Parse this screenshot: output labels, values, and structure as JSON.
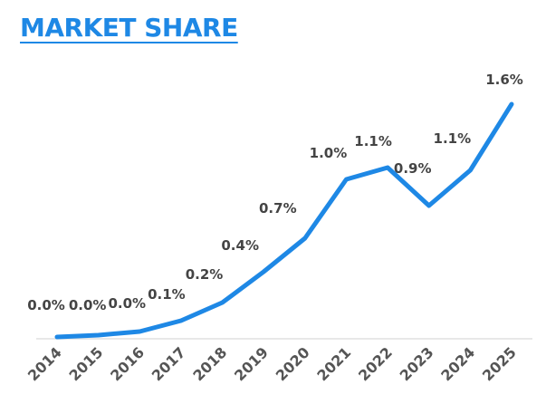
{
  "header": {
    "title": "MARKET SHARE"
  },
  "colors": {
    "accent": "#1e88e5",
    "label": "#444444",
    "axis": "#e0e0e0"
  },
  "chart_data": {
    "type": "line",
    "title": "MARKET SHARE",
    "xlabel": "",
    "ylabel": "",
    "categories": [
      "2014",
      "2015",
      "2016",
      "2017",
      "2018",
      "2019",
      "2020",
      "2021",
      "2022",
      "2023",
      "2024",
      "2025"
    ],
    "values": [
      0.0,
      0.0,
      0.0,
      0.1,
      0.2,
      0.4,
      0.7,
      1.0,
      1.1,
      0.9,
      1.1,
      1.6
    ],
    "data_labels": [
      "0.0%",
      "0.0%",
      "0.0%",
      "0.1%",
      "0.2%",
      "0.4%",
      "0.7%",
      "1.0%",
      "1.1%",
      "0.9%",
      "1.1%",
      "1.6%"
    ],
    "grid": false,
    "legend": "none",
    "x_tick_rotation": -45
  }
}
